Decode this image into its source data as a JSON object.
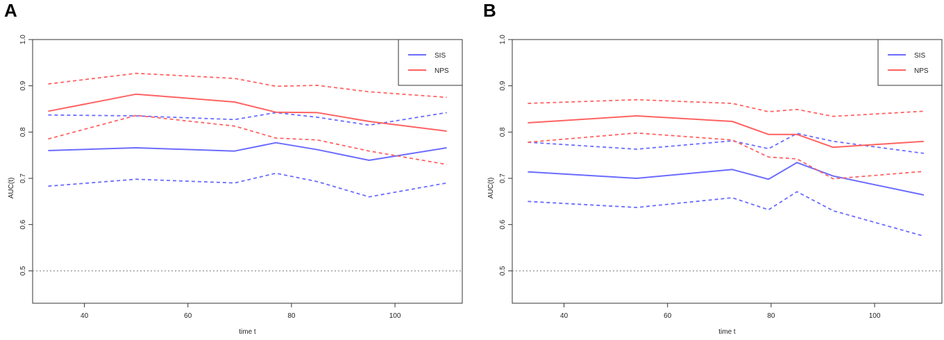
{
  "chart_data": [
    {
      "panel_label": "A",
      "type": "line",
      "xlabel": "time t",
      "ylabel": "AUC(t)",
      "xlim": [
        30,
        113
      ],
      "ylim": [
        0.43,
        1.0
      ],
      "xticks": [
        40,
        60,
        80,
        100
      ],
      "yticks": [
        0.5,
        0.6,
        0.7,
        0.8,
        0.9,
        1.0
      ],
      "xtick_labels": [
        "40",
        "60",
        "80",
        "100"
      ],
      "ytick_labels": [
        "0.5",
        "0.6",
        "0.7",
        "0.8",
        "0.9",
        "1.0"
      ],
      "reference_line": 0.5,
      "legend_position": "top-right",
      "legend": [
        {
          "name": "SIS",
          "color": "#6b6bff"
        },
        {
          "name": "NPS",
          "color": "#ff6262"
        }
      ],
      "series": [
        {
          "name": "SIS",
          "role": "estimate",
          "color": "#6b6bff",
          "style": "solid",
          "x": [
            33,
            50,
            69,
            77,
            85,
            95,
            110
          ],
          "values": [
            0.76,
            0.766,
            0.759,
            0.777,
            0.762,
            0.739,
            0.766
          ]
        },
        {
          "name": "SIS",
          "role": "upper",
          "color": "#6b6bff",
          "style": "dashed",
          "x": [
            33,
            50,
            69,
            77,
            85,
            95,
            110
          ],
          "values": [
            0.837,
            0.835,
            0.827,
            0.842,
            0.832,
            0.815,
            0.842
          ]
        },
        {
          "name": "SIS",
          "role": "lower",
          "color": "#6b6bff",
          "style": "dashed",
          "x": [
            33,
            50,
            69,
            77,
            85,
            95,
            110
          ],
          "values": [
            0.683,
            0.698,
            0.69,
            0.711,
            0.693,
            0.66,
            0.69
          ]
        },
        {
          "name": "NPS",
          "role": "estimate",
          "color": "#ff6262",
          "style": "solid",
          "x": [
            33,
            50,
            69,
            77,
            85,
            95,
            110
          ],
          "values": [
            0.845,
            0.882,
            0.865,
            0.843,
            0.842,
            0.823,
            0.802
          ]
        },
        {
          "name": "NPS",
          "role": "upper",
          "color": "#ff6262",
          "style": "dashed",
          "x": [
            33,
            50,
            69,
            77,
            85,
            95,
            110
          ],
          "values": [
            0.904,
            0.927,
            0.916,
            0.899,
            0.901,
            0.887,
            0.875
          ]
        },
        {
          "name": "NPS",
          "role": "lower",
          "color": "#ff6262",
          "style": "dashed",
          "x": [
            33,
            50,
            69,
            77,
            85,
            95,
            110
          ],
          "values": [
            0.785,
            0.836,
            0.813,
            0.787,
            0.783,
            0.759,
            0.73
          ]
        }
      ]
    },
    {
      "panel_label": "B",
      "type": "line",
      "xlabel": "time t",
      "ylabel": "AUC(t)",
      "xlim": [
        30,
        113
      ],
      "ylim": [
        0.43,
        1.0
      ],
      "xticks": [
        40,
        60,
        80,
        100
      ],
      "yticks": [
        0.5,
        0.6,
        0.7,
        0.8,
        0.9,
        1.0
      ],
      "xtick_labels": [
        "40",
        "60",
        "80",
        "100"
      ],
      "ytick_labels": [
        "0.5",
        "0.6",
        "0.7",
        "0.8",
        "0.9",
        "1.0"
      ],
      "reference_line": 0.5,
      "legend_position": "top-right",
      "legend": [
        {
          "name": "SIS",
          "color": "#6b6bff"
        },
        {
          "name": "NPS",
          "color": "#ff6262"
        }
      ],
      "series": [
        {
          "name": "SIS",
          "role": "estimate",
          "color": "#6b6bff",
          "style": "solid",
          "x": [
            33,
            54,
            72.5,
            79.5,
            85,
            92,
            109.5
          ],
          "values": [
            0.714,
            0.7,
            0.719,
            0.698,
            0.734,
            0.705,
            0.664
          ]
        },
        {
          "name": "SIS",
          "role": "upper",
          "color": "#6b6bff",
          "style": "dashed",
          "x": [
            33,
            54,
            72.5,
            79.5,
            85,
            92,
            109.5
          ],
          "values": [
            0.778,
            0.763,
            0.781,
            0.764,
            0.797,
            0.78,
            0.754
          ]
        },
        {
          "name": "SIS",
          "role": "lower",
          "color": "#6b6bff",
          "style": "dashed",
          "x": [
            33,
            54,
            72.5,
            79.5,
            85,
            92,
            109.5
          ],
          "values": [
            0.65,
            0.637,
            0.658,
            0.632,
            0.671,
            0.63,
            0.575
          ]
        },
        {
          "name": "NPS",
          "role": "estimate",
          "color": "#ff6262",
          "style": "solid",
          "x": [
            33,
            54,
            72.5,
            79.5,
            85,
            92,
            109.5
          ],
          "values": [
            0.82,
            0.835,
            0.823,
            0.795,
            0.795,
            0.767,
            0.78
          ]
        },
        {
          "name": "NPS",
          "role": "upper",
          "color": "#ff6262",
          "style": "dashed",
          "x": [
            33,
            54,
            72.5,
            79.5,
            85,
            92,
            109.5
          ],
          "values": [
            0.862,
            0.87,
            0.862,
            0.844,
            0.849,
            0.834,
            0.845
          ]
        },
        {
          "name": "NPS",
          "role": "lower",
          "color": "#ff6262",
          "style": "dashed",
          "x": [
            33,
            54,
            72.5,
            79.5,
            85,
            92,
            109.5
          ],
          "values": [
            0.778,
            0.798,
            0.783,
            0.746,
            0.742,
            0.699,
            0.715
          ]
        }
      ]
    }
  ]
}
